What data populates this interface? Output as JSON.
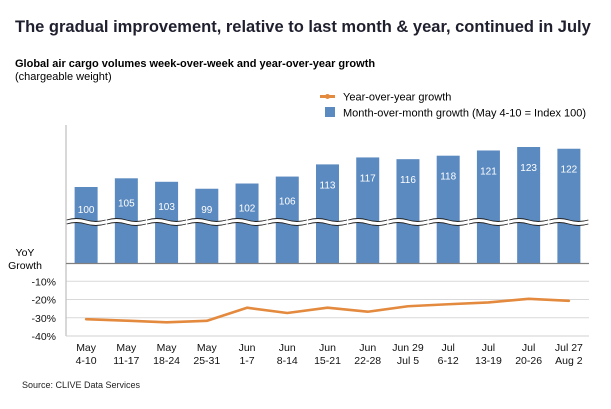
{
  "title": "The gradual improvement, relative to last month & year, continued in July",
  "subtitle": "Global air cargo volumes week-over-week and year-over-year growth",
  "subtitle_note": "(chargeable weight)",
  "source": "Source: CLIVE Data Services",
  "colors": {
    "bar": "#5b8ac0",
    "line": "#e38a3f",
    "grid": "#d9d9d9",
    "axis": "#8c8c8c",
    "bar_label": "#ffffff"
  },
  "chart_data": {
    "type": "bar+line",
    "title": "Global air cargo volumes week-over-week and year-over-year growth",
    "categories": [
      [
        "May",
        "4-10"
      ],
      [
        "May",
        "11-17"
      ],
      [
        "May",
        "18-24"
      ],
      [
        "May",
        "25-31"
      ],
      [
        "Jun",
        "1-7"
      ],
      [
        "Jun",
        "8-14"
      ],
      [
        "Jun",
        "15-21"
      ],
      [
        "Jun",
        "22-28"
      ],
      [
        "Jun 29",
        "Jul 5"
      ],
      [
        "Jul",
        "6-12"
      ],
      [
        "Jul",
        "13-19"
      ],
      [
        "Jul",
        "20-26"
      ],
      [
        "Jul 27",
        "Aug 2"
      ]
    ],
    "series": [
      {
        "name": "Month-over-month growth (May 4-10 = Index 100)",
        "type": "bar",
        "axis": "broken index axis (upper panel)",
        "values": [
          100,
          105,
          103,
          99,
          102,
          106,
          113,
          117,
          116,
          118,
          121,
          123,
          122
        ]
      },
      {
        "name": "Year-over-year growth",
        "type": "line",
        "axis": "YoY Growth (lower panel, %)",
        "values": [
          -30.8,
          -31.6,
          -32.5,
          -31.7,
          -24.5,
          -27.4,
          -24.5,
          -26.7,
          -23.7,
          -22.6,
          -21.6,
          -19.6,
          -20.7
        ]
      }
    ],
    "yoy_axis": {
      "label": [
        "YoY",
        "Growth"
      ],
      "ticks": [
        "-10%",
        "-20%",
        "-30%",
        "-40%"
      ],
      "tick_values": [
        -10,
        -20,
        -30,
        -40
      ],
      "ylim": [
        -40,
        0
      ]
    },
    "index_axis_break": true,
    "grid": true,
    "legend": {
      "placement": "top-right",
      "entries": [
        "Year-over-year growth",
        "Month-over-month growth (May 4-10 = Index 100)"
      ]
    }
  }
}
